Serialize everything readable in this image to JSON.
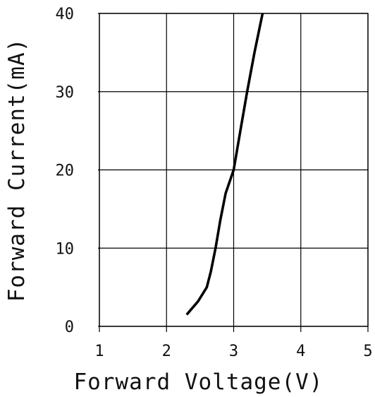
{
  "chart_data": {
    "type": "line",
    "title": "",
    "xlabel": "Forward Voltage(V)",
    "ylabel": "Forward Current(mA)",
    "xlim": [
      1,
      5
    ],
    "ylim": [
      0,
      40
    ],
    "xticks": [
      "1",
      "2",
      "3",
      "4",
      "5"
    ],
    "yticks": [
      "0",
      "10",
      "20",
      "30",
      "40"
    ],
    "grid": true,
    "legend": "none",
    "series": [
      {
        "color": "#000000",
        "x": [
          2.3,
          2.47,
          2.6,
          2.66,
          2.73,
          2.8,
          2.88,
          3.0,
          3.1,
          3.2,
          3.31,
          3.43
        ],
        "y": [
          1.5,
          3.2,
          5.0,
          7.0,
          10.0,
          13.5,
          17.0,
          20.0,
          25.0,
          30.0,
          35.0,
          40.0
        ]
      }
    ]
  }
}
